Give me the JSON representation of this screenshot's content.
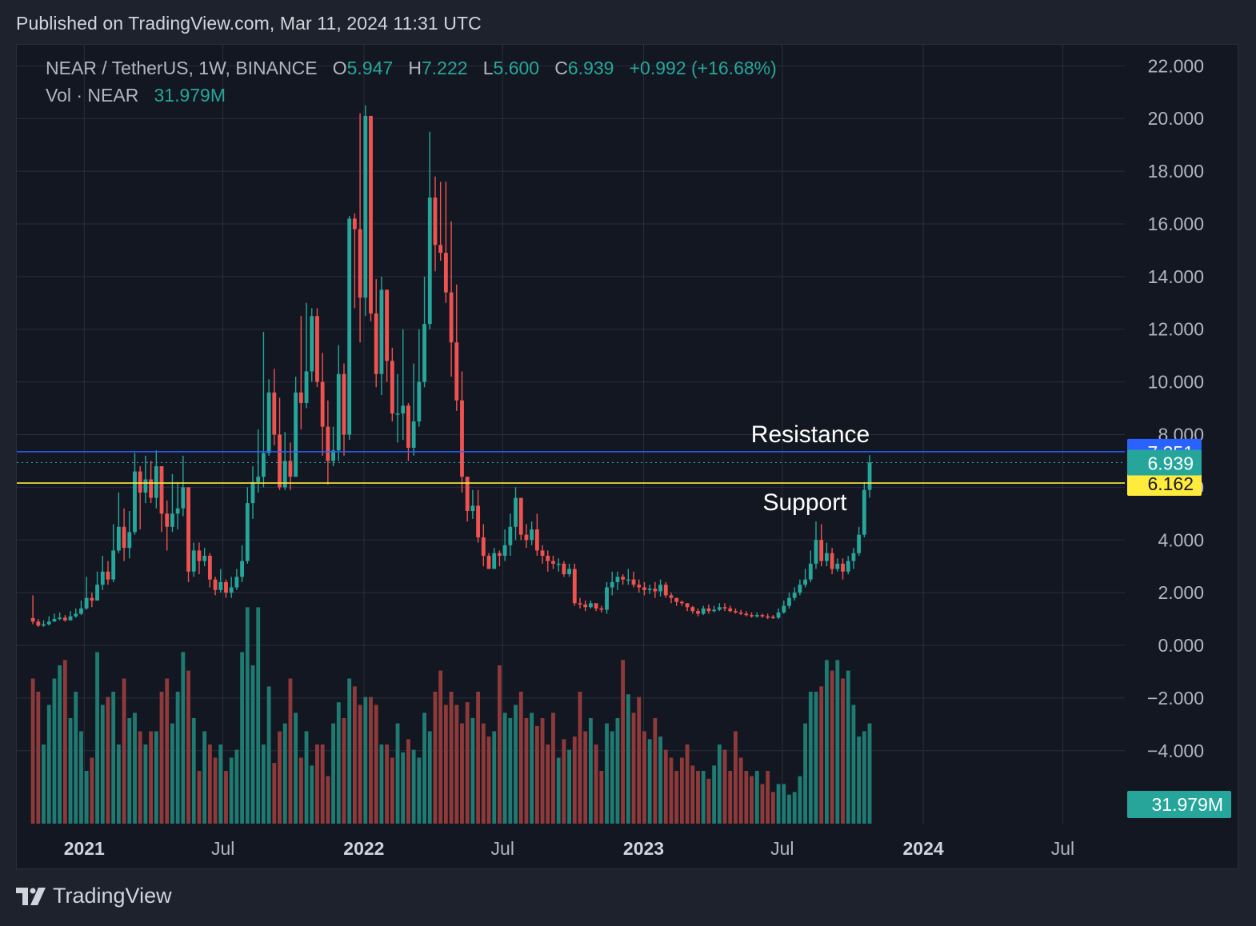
{
  "header": {
    "published": "Published on TradingView.com, Mar 11, 2024 11:31 UTC"
  },
  "legend": {
    "symbol": "NEAR / TetherUS, 1W, BINANCE",
    "o_label": "O",
    "o_value": "5.947",
    "h_label": "H",
    "h_value": "7.222",
    "l_label": "L",
    "l_value": "5.600",
    "c_label": "C",
    "c_value": "6.939",
    "change": "+0.992 (+16.68%)",
    "vol_label": "Vol · NEAR",
    "vol_value": "31.979M"
  },
  "brand": {
    "name": "TradingView"
  },
  "colors": {
    "up": "#26a69a",
    "down": "#ef5350",
    "vol_up": "#1f7a72",
    "vol_down": "#8e3a3a",
    "resistance": "#2962ff",
    "support": "#ffeb3b",
    "grid": "#2a2e39",
    "axis_text": "#b2b5be",
    "background": "#131722"
  },
  "chart_data": {
    "type": "candlestick",
    "title": "NEAR / TetherUS, 1W, BINANCE",
    "ylim": [
      -6.8,
      22.8
    ],
    "y_ticks": [
      "22.000",
      "20.000",
      "18.000",
      "16.000",
      "14.000",
      "12.000",
      "10.000",
      "8.000",
      "6.000",
      "4.000",
      "2.000",
      "0.000",
      "−2.000",
      "−4.000"
    ],
    "x_ticks": [
      {
        "label": "2021",
        "date": "2021-01-01",
        "bold": true
      },
      {
        "label": "Jul",
        "date": "2021-07-01",
        "bold": false
      },
      {
        "label": "2022",
        "date": "2022-01-01",
        "bold": true
      },
      {
        "label": "Jul",
        "date": "2022-07-01",
        "bold": false
      },
      {
        "label": "2023",
        "date": "2023-01-01",
        "bold": true
      },
      {
        "label": "Jul",
        "date": "2023-07-01",
        "bold": false
      },
      {
        "label": "2024",
        "date": "2024-01-01",
        "bold": true
      },
      {
        "label": "Jul",
        "date": "2024-07-01",
        "bold": false
      }
    ],
    "x_range": [
      "2020-10-05",
      "2024-09-20"
    ],
    "first_candle": "2020-10-26",
    "candle_interval": "1W",
    "close_series": [
      0.9,
      0.75,
      0.8,
      0.9,
      1.0,
      1.05,
      0.95,
      1.1,
      1.2,
      1.4,
      1.8,
      1.7,
      2.3,
      2.8,
      2.5,
      3.6,
      4.5,
      3.7,
      4.3,
      6.6,
      5.8,
      6.3,
      5.6,
      6.8,
      5.0,
      4.5,
      5.0,
      5.2,
      6.0,
      2.8,
      3.6,
      3.2,
      3.4,
      2.5,
      2.1,
      2.4,
      2.0,
      2.2,
      2.6,
      3.2,
      5.4,
      6.2,
      6.4,
      7.3,
      9.6,
      8.0,
      6.0,
      7.0,
      6.4,
      9.6,
      9.2,
      10.4,
      12.5,
      10.0,
      8.3,
      7.0,
      7.4,
      10.3,
      8.0,
      16.2,
      15.8,
      13.2,
      20.1,
      12.6,
      10.3,
      13.5,
      10.8,
      8.8,
      8.8,
      9.1,
      7.5,
      8.5,
      10.0,
      12.2,
      17.0,
      15.2,
      14.9,
      13.4,
      11.5,
      9.3,
      6.4,
      5.1,
      5.3,
      4.1,
      3.4,
      2.9,
      3.5,
      3.4,
      3.8,
      4.5,
      5.6,
      4.2,
      4.0,
      4.4,
      3.6,
      3.4,
      3.2,
      3.1,
      3.1,
      2.7,
      2.9,
      1.6,
      1.55,
      1.45,
      1.6,
      1.4,
      1.35,
      2.2,
      2.4,
      2.6,
      2.5,
      2.5,
      2.3,
      2.2,
      2.1,
      2.15,
      2.05,
      2.3,
      1.9,
      1.8,
      1.65,
      1.6,
      1.45,
      1.3,
      1.2,
      1.4,
      1.3,
      1.35,
      1.45,
      1.4,
      1.3,
      1.25,
      1.2,
      1.15,
      1.1,
      1.15,
      1.1,
      1.08,
      1.05,
      1.25,
      1.5,
      1.8,
      2.0,
      2.3,
      2.5,
      3.1,
      4.0,
      3.2,
      3.5,
      2.9,
      3.1,
      2.8,
      3.2,
      3.5,
      4.2,
      5.9,
      6.939
    ],
    "high_series": [
      1.9,
      1.0,
      0.95,
      1.1,
      1.2,
      1.25,
      1.15,
      1.3,
      1.4,
      1.7,
      2.6,
      2.0,
      2.8,
      3.4,
      3.2,
      4.6,
      5.8,
      5.2,
      5.1,
      7.3,
      6.8,
      7.2,
      7.0,
      7.4,
      6.8,
      5.5,
      6.5,
      6.2,
      7.2,
      5.2,
      3.9,
      3.9,
      3.7,
      3.5,
      2.6,
      2.9,
      2.5,
      2.6,
      2.9,
      3.8,
      6.0,
      6.8,
      8.2,
      11.9,
      10.1,
      10.5,
      9.4,
      8.1,
      7.7,
      10.2,
      12.5,
      13.0,
      12.8,
      12.8,
      11.1,
      9.3,
      8.3,
      11.4,
      10.7,
      16.3,
      16.4,
      20.2,
      20.5,
      20.1,
      13.9,
      14.0,
      13.1,
      11.3,
      10.3,
      12.0,
      9.2,
      10.7,
      12.0,
      14.0,
      19.5,
      17.8,
      17.6,
      17.6,
      16.1,
      13.7,
      10.4,
      6.3,
      5.9,
      5.9,
      4.6,
      3.5,
      3.7,
      3.6,
      4.4,
      5.0,
      6.0,
      5.5,
      4.6,
      4.7,
      5.0,
      3.8,
      3.6,
      3.4,
      3.3,
      3.2,
      3.1,
      3.1,
      1.8,
      1.7,
      1.7,
      1.6,
      1.5,
      2.4,
      2.8,
      2.8,
      2.7,
      2.9,
      2.8,
      2.5,
      2.4,
      2.3,
      2.4,
      2.5,
      2.4,
      2.0,
      1.8,
      1.7,
      1.6,
      1.5,
      1.4,
      1.5,
      1.55,
      1.5,
      1.6,
      1.6,
      1.5,
      1.4,
      1.35,
      1.3,
      1.25,
      1.25,
      1.2,
      1.2,
      1.15,
      1.4,
      1.7,
      2.0,
      2.2,
      2.5,
      2.9,
      3.6,
      4.7,
      4.6,
      3.9,
      3.7,
      3.3,
      3.3,
      3.4,
      3.7,
      4.5,
      6.2,
      7.222
    ],
    "low_series": [
      0.8,
      0.7,
      0.7,
      0.75,
      0.9,
      0.95,
      0.9,
      0.95,
      1.05,
      1.15,
      1.35,
      1.45,
      1.7,
      2.1,
      2.3,
      2.4,
      3.5,
      3.2,
      3.3,
      4.2,
      4.4,
      5.4,
      5.4,
      5.2,
      4.3,
      3.6,
      4.3,
      4.4,
      4.9,
      2.4,
      2.6,
      2.7,
      3.0,
      2.2,
      1.9,
      2.0,
      1.8,
      1.8,
      2.1,
      2.4,
      3.1,
      4.8,
      5.8,
      6.0,
      7.2,
      7.6,
      5.9,
      5.9,
      5.9,
      6.4,
      8.2,
      9.0,
      10.0,
      9.8,
      7.2,
      6.1,
      6.8,
      7.0,
      7.2,
      7.8,
      12.8,
      11.5,
      12.5,
      12.3,
      9.8,
      9.5,
      10.0,
      8.5,
      7.7,
      7.8,
      7.0,
      7.2,
      8.3,
      9.8,
      12.0,
      14.2,
      14.6,
      13.0,
      10.2,
      8.9,
      5.8,
      4.7,
      4.8,
      3.9,
      3.0,
      2.9,
      2.9,
      3.0,
      3.2,
      3.4,
      4.0,
      4.0,
      3.7,
      3.8,
      3.4,
      3.1,
      2.8,
      2.9,
      2.8,
      2.6,
      2.6,
      1.5,
      1.4,
      1.3,
      1.4,
      1.3,
      1.25,
      1.2,
      1.9,
      2.1,
      2.3,
      2.3,
      2.2,
      2.0,
      1.9,
      1.95,
      1.8,
      1.85,
      1.8,
      1.6,
      1.5,
      1.5,
      1.3,
      1.2,
      1.1,
      1.15,
      1.2,
      1.25,
      1.3,
      1.3,
      1.25,
      1.2,
      1.15,
      1.1,
      1.05,
      1.05,
      1.05,
      1.0,
      1.0,
      1.0,
      1.2,
      1.4,
      1.7,
      1.9,
      2.2,
      2.4,
      2.9,
      3.0,
      3.0,
      2.7,
      2.8,
      2.5,
      2.7,
      2.9,
      3.4,
      4.1,
      5.6
    ],
    "volume_series": [
      55,
      50,
      30,
      45,
      55,
      60,
      62,
      40,
      50,
      35,
      20,
      25,
      65,
      45,
      48,
      50,
      30,
      55,
      40,
      42,
      35,
      30,
      35,
      35,
      50,
      55,
      38,
      50,
      65,
      58,
      40,
      20,
      35,
      30,
      25,
      30,
      20,
      25,
      28,
      65,
      82,
      60,
      82,
      30,
      52,
      23,
      35,
      38,
      55,
      42,
      25,
      35,
      22,
      30,
      30,
      18,
      38,
      46,
      40,
      55,
      52,
      45,
      48,
      48,
      45,
      30,
      30,
      25,
      38,
      27,
      32,
      28,
      25,
      42,
      35,
      50,
      58,
      45,
      50,
      45,
      38,
      46,
      40,
      50,
      38,
      33,
      35,
      60,
      42,
      40,
      45,
      50,
      40,
      42,
      37,
      40,
      30,
      42,
      25,
      32,
      28,
      33,
      50,
      35,
      40,
      30,
      20,
      38,
      35,
      40,
      62,
      49,
      42,
      48,
      35,
      32,
      40,
      33,
      28,
      25,
      20,
      25,
      30,
      22,
      20,
      20,
      17,
      22,
      30,
      28,
      20,
      35,
      25,
      20,
      18,
      20,
      15,
      20,
      12,
      15,
      15,
      11,
      12,
      18,
      38,
      50,
      50,
      52,
      62,
      58,
      62,
      55,
      58,
      45,
      33,
      35,
      38,
      50,
      43,
      60,
      35
    ],
    "volume_last_label": "31.979M",
    "horizontal_lines": [
      {
        "name": "Resistance",
        "value": 7.351,
        "label": "7.351",
        "color": "#2962ff"
      },
      {
        "name": "Support",
        "value": 6.162,
        "label": "6.162",
        "color": "#ffeb3b"
      }
    ],
    "last_price": {
      "value": 6.939,
      "label": "6.939"
    }
  }
}
